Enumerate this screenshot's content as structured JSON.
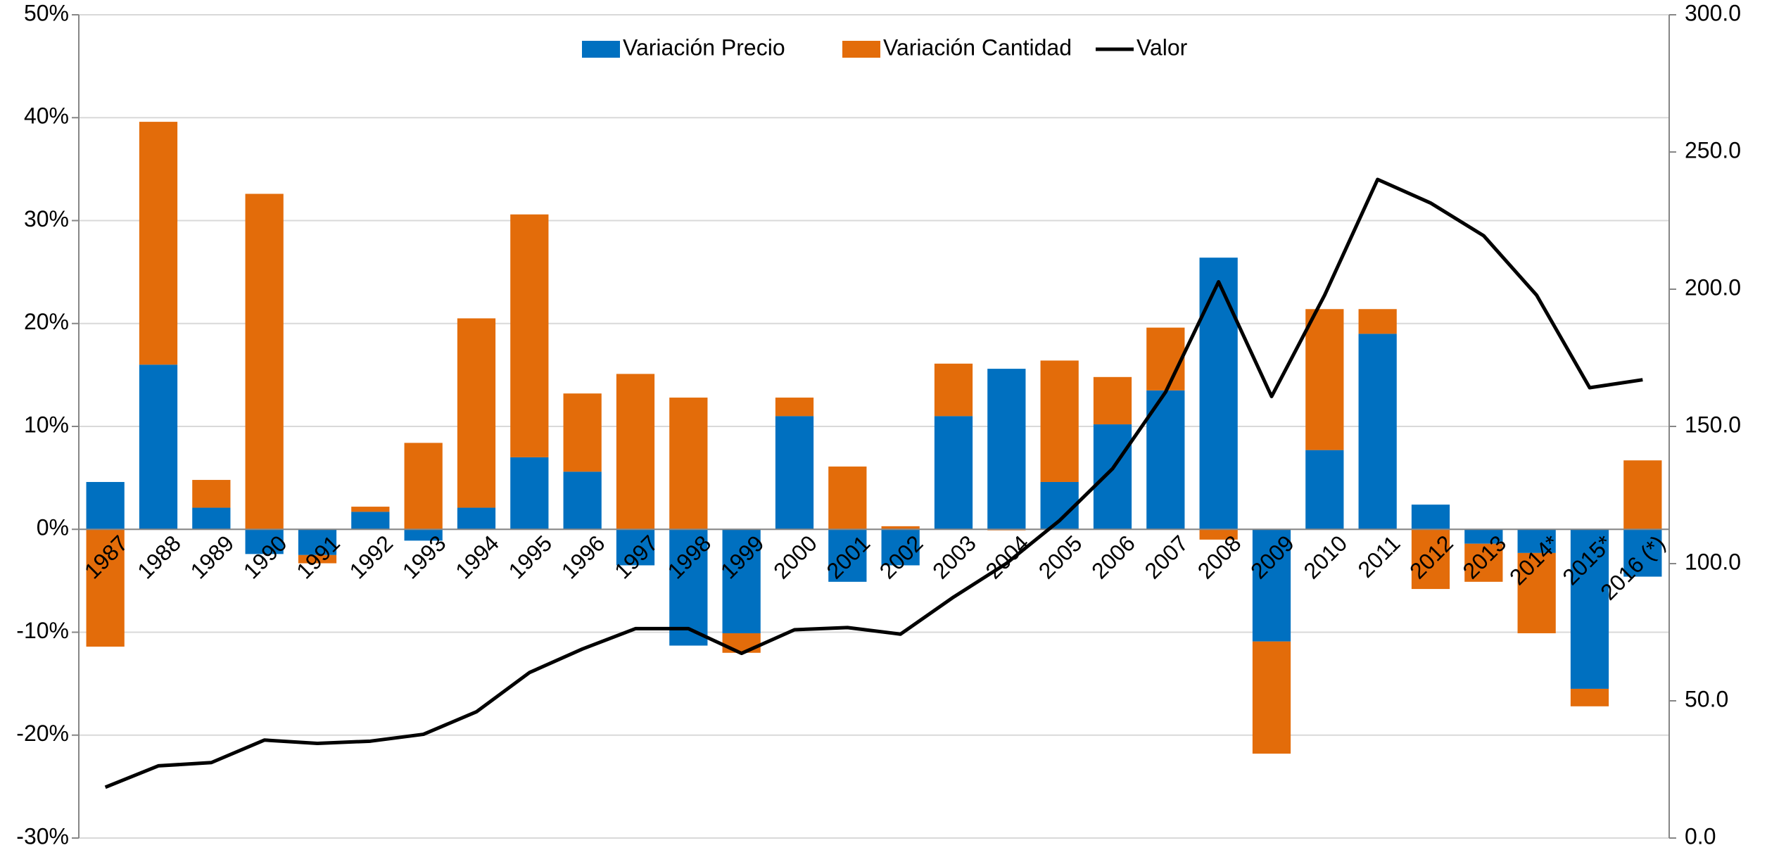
{
  "chart_data": {
    "type": "bar",
    "stacked": true,
    "categories": [
      "1987",
      "1988",
      "1989",
      "1990",
      "1991",
      "1992",
      "1993",
      "1994",
      "1995",
      "1996",
      "1997",
      "1998",
      "1999",
      "2000",
      "2001",
      "2002",
      "2003",
      "2004",
      "2005",
      "2006",
      "2007",
      "2008",
      "2009",
      "2010",
      "2011",
      "2012",
      "2013",
      "2014*",
      "2015*",
      "2016 (*)"
    ],
    "series": [
      {
        "name": "Variación Precio",
        "type": "bar",
        "color": "#0070c0",
        "values": [
          4.6,
          16.0,
          2.1,
          -2.4,
          -2.5,
          1.7,
          -1.1,
          2.1,
          7.0,
          5.6,
          -3.5,
          -11.3,
          -10.1,
          11.0,
          -5.1,
          -3.5,
          11.0,
          15.6,
          4.6,
          10.2,
          13.5,
          26.4,
          -10.9,
          7.7,
          19.0,
          2.4,
          -1.4,
          -2.3,
          -15.5,
          -4.6
        ]
      },
      {
        "name": "Variación Cantidad",
        "type": "bar",
        "color": "#e36c0a",
        "values": [
          -11.4,
          23.6,
          2.7,
          32.6,
          -0.8,
          0.5,
          8.4,
          18.4,
          23.6,
          7.6,
          15.1,
          12.8,
          -1.9,
          1.8,
          6.1,
          0.3,
          5.1,
          -0.1,
          11.8,
          4.6,
          6.1,
          -1.0,
          -10.9,
          13.7,
          2.4,
          -5.8,
          -3.7,
          -7.8,
          -1.7,
          6.7
        ]
      },
      {
        "name": "Valor",
        "type": "line",
        "axis": "y2",
        "color": "#000000",
        "values": [
          18.5,
          26.3,
          27.5,
          35.7,
          34.5,
          35.3,
          37.8,
          46.0,
          60.3,
          68.9,
          76.3,
          76.3,
          67.3,
          75.9,
          76.7,
          74.3,
          87.8,
          100.1,
          115.7,
          134.6,
          162.5,
          202.7,
          160.9,
          197.8,
          240.0,
          231.4,
          219.5,
          197.8,
          164.1,
          167.0
        ]
      }
    ],
    "ylim": [
      -30,
      50
    ],
    "yticks": [
      {
        "value": -30,
        "label": "-30%"
      },
      {
        "value": -20,
        "label": "-20%"
      },
      {
        "value": -10,
        "label": "-10%"
      },
      {
        "value": 0,
        "label": "0%"
      },
      {
        "value": 10,
        "label": "10%"
      },
      {
        "value": 20,
        "label": "20%"
      },
      {
        "value": 30,
        "label": "30%"
      },
      {
        "value": 40,
        "label": "40%"
      },
      {
        "value": 50,
        "label": "50%"
      }
    ],
    "y2lim": [
      0,
      300
    ],
    "y2ticks": [
      {
        "value": 0,
        "label": "0.0"
      },
      {
        "value": 50,
        "label": "50.0"
      },
      {
        "value": 100,
        "label": "100.0"
      },
      {
        "value": 150,
        "label": "150.0"
      },
      {
        "value": 200,
        "label": "200.0"
      },
      {
        "value": 250,
        "label": "250.0"
      },
      {
        "value": 300,
        "label": "300.0"
      }
    ],
    "grid": true,
    "legend": "top"
  }
}
